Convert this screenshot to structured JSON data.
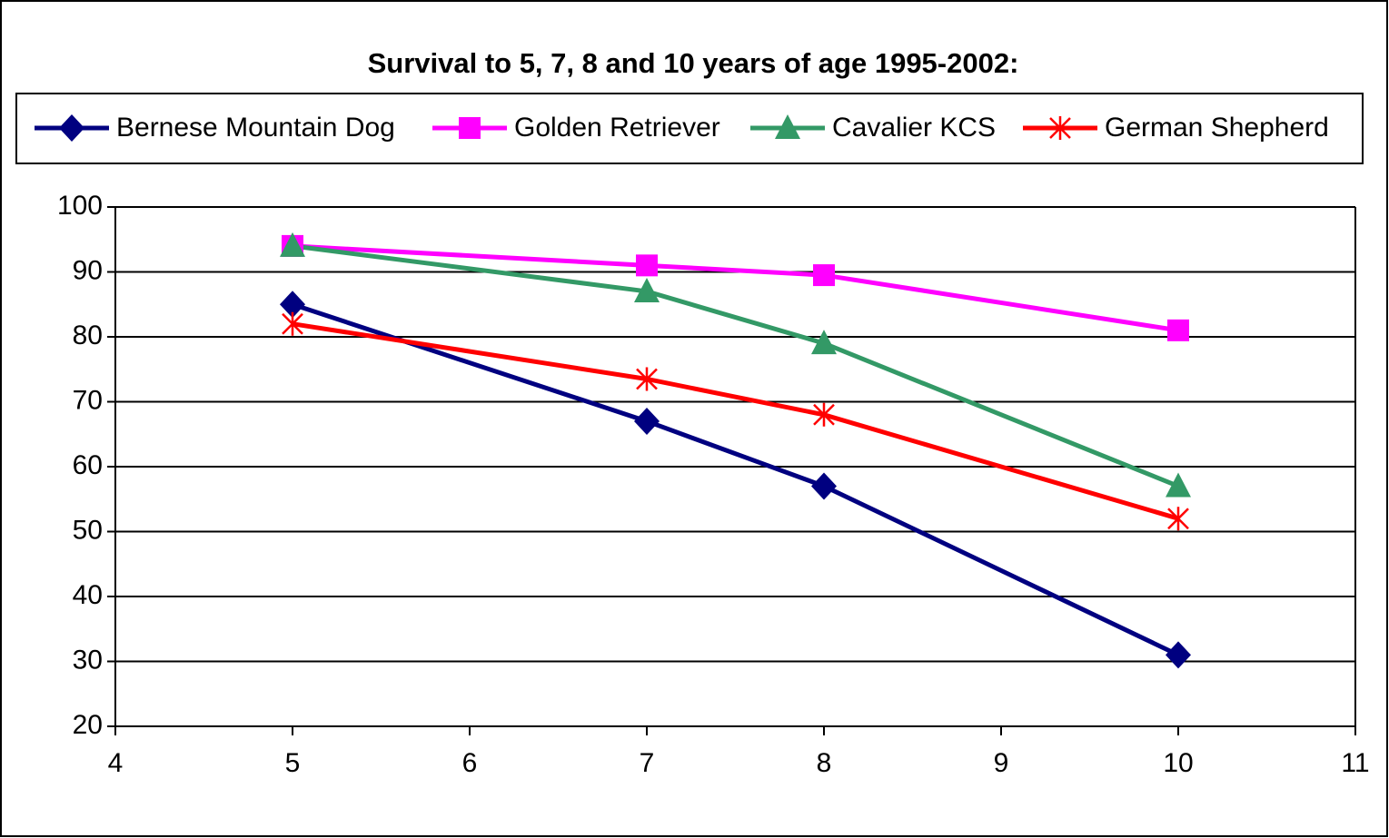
{
  "chart_data": {
    "type": "line",
    "title": "Survival to 5, 7, 8 and 10 years of age 1995-2002:",
    "x": [
      5,
      7,
      8,
      10
    ],
    "series": [
      {
        "name": "Bernese Mountain Dog",
        "color": "#000080",
        "marker": "diamond",
        "values": [
          85,
          67,
          57,
          31
        ]
      },
      {
        "name": "Golden Retriever",
        "color": "#ff00ff",
        "marker": "square",
        "values": [
          94,
          91,
          89.5,
          81
        ]
      },
      {
        "name": "Cavalier KCS",
        "color": "#339966",
        "marker": "triangle",
        "values": [
          94,
          87,
          79,
          57
        ]
      },
      {
        "name": "German Shepherd",
        "color": "#ff0000",
        "marker": "star",
        "values": [
          82,
          73.5,
          68,
          52
        ]
      }
    ],
    "xlim": [
      4,
      11
    ],
    "xticks": [
      4,
      5,
      6,
      7,
      8,
      9,
      10,
      11
    ],
    "ylim": [
      20,
      100
    ],
    "yticks": [
      20,
      30,
      40,
      50,
      60,
      70,
      80,
      90,
      100
    ],
    "grid": true,
    "legend": "top"
  }
}
